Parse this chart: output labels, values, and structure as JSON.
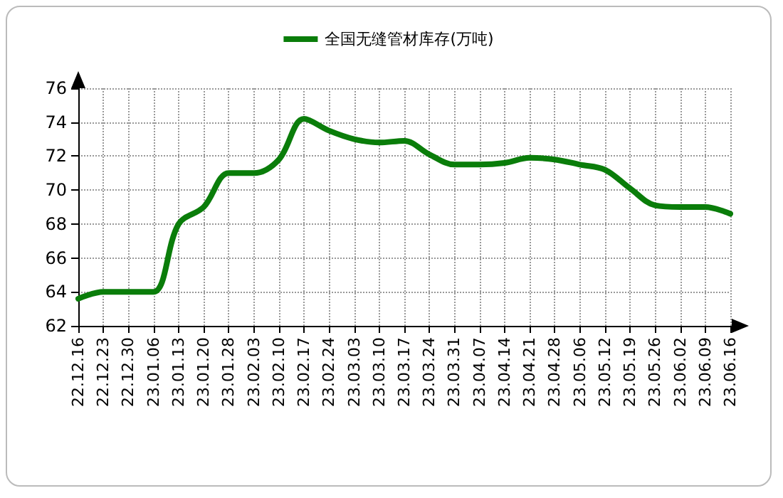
{
  "chart_data": {
    "type": "line",
    "categories": [
      "22.12.16",
      "22.12.23",
      "22.12.30",
      "23.01.06",
      "23.01.13",
      "23.01.20",
      "23.01.28",
      "23.02.03",
      "23.02.10",
      "23.02.17",
      "23.02.24",
      "23.03.03",
      "23.03.10",
      "23.03.17",
      "23.03.24",
      "23.03.31",
      "23.04.07",
      "23.04.14",
      "23.04.21",
      "23.04.28",
      "23.05.06",
      "23.05.12",
      "23.05.19",
      "23.05.26",
      "23.06.02",
      "23.06.09",
      "23.06.16"
    ],
    "series": [
      {
        "name": "全国无缝管材库存(万吨)",
        "color": "#0a7d0a",
        "values": [
          63.6,
          64.0,
          64.0,
          64.0,
          68.0,
          69.0,
          71.0,
          71.0,
          71.8,
          74.2,
          73.5,
          73.0,
          72.8,
          72.9,
          72.1,
          71.5,
          71.5,
          71.6,
          71.9,
          71.8,
          71.5,
          71.2,
          70.1,
          69.1,
          69.0,
          69.0,
          68.6
        ]
      }
    ],
    "ylim": [
      62,
      76
    ],
    "yticks": [
      62,
      64,
      66,
      68,
      70,
      72,
      74,
      76
    ],
    "grid": true,
    "legend": "top",
    "marker": "none",
    "line_style": "solid"
  }
}
